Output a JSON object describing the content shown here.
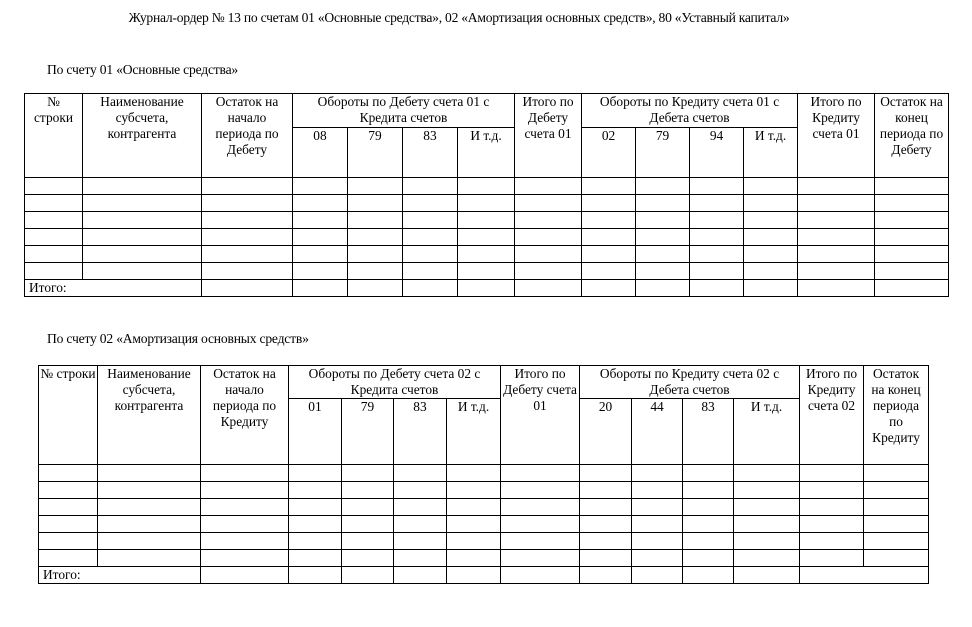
{
  "title": "Журнал-ордер № 13 по счетам 01 «Основные средства», 02 «Амортизация основных средств», 80 «Уставный капитал»",
  "tables": [
    {
      "caption": "По счету 01 «Основные средства»",
      "headers": {
        "row_no": "№ строки",
        "name": "Наименование субсчета, контрагента",
        "opening": "Остаток на начало периода по Дебету",
        "debit_group": "Обороты по Дебету счета 01 с Кредита счетов",
        "debit_accounts": [
          "08",
          "79",
          "83",
          "И т.д."
        ],
        "debit_total": "Итого по Дебету счета 01",
        "credit_group": "Обороты по Кредиту счета 01 с Дебета счетов",
        "credit_accounts": [
          "02",
          "79",
          "94",
          "И т.д."
        ],
        "credit_total": "Итого по Кредиту счета 01",
        "closing": "Остаток на конец периода по Дебету"
      },
      "empty_rows": 6,
      "total_label": "Итого:"
    },
    {
      "caption": "По счету 02 «Амортизация основных средств»",
      "headers": {
        "row_no": "№ строки",
        "name": "Наименование субсчета, контрагента",
        "opening": "Остаток на начало периода по Кредиту",
        "debit_group": "Обороты по Дебету счета 02 с Кредита счетов",
        "debit_accounts": [
          "01",
          "79",
          "83",
          "И т.д."
        ],
        "debit_total": "Итого по Дебету счета 01",
        "credit_group": "Обороты по Кредиту счета 02 с Дебета счетов",
        "credit_accounts": [
          "20",
          "44",
          "83",
          "И т.д."
        ],
        "credit_total": "Итого по Кредиту счета 02",
        "closing": "Остаток на конец периода по Кредиту"
      },
      "empty_rows": 6,
      "total_label": "Итого:"
    }
  ]
}
